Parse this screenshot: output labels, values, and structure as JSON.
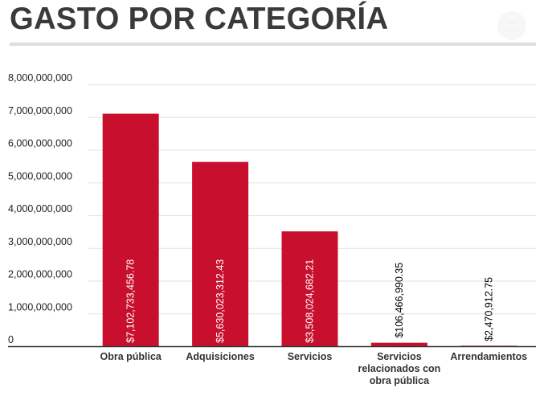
{
  "header": {
    "title": "GASTO POR CATEGORÍA",
    "menu_icon": "hamburger-menu-icon"
  },
  "colors": {
    "bar": "#c8102e",
    "label_inside": "#ffffff",
    "label_outside": "#000000",
    "grid": "#e2e2e2",
    "axis": "#333333"
  },
  "chart_data": {
    "type": "bar",
    "title": "GASTO POR CATEGORÍA",
    "xlabel": "",
    "ylabel": "",
    "ylim": [
      0,
      8000000000
    ],
    "grid": true,
    "legend": "none",
    "y_ticks": [
      0,
      1000000000,
      2000000000,
      3000000000,
      4000000000,
      5000000000,
      6000000000,
      7000000000,
      8000000000
    ],
    "y_tick_labels": [
      "0",
      "1,000,000,000",
      "2,000,000,000",
      "3,000,000,000",
      "4,000,000,000",
      "5,000,000,000",
      "6,000,000,000",
      "7,000,000,000",
      "8,000,000,000"
    ],
    "categories": [
      "Obra pública",
      "Adquisiciones",
      "Servicios",
      "Servicios relacionados con obra pública",
      "Arrendamientos"
    ],
    "category_label_lines": [
      [
        "Obra pública"
      ],
      [
        "Adquisiciones"
      ],
      [
        "Servicios"
      ],
      [
        "Servicios",
        "relacionados con",
        "obra pública"
      ],
      [
        "Arrendamientos"
      ]
    ],
    "values": [
      7102733456.78,
      5630023312.43,
      3508024682.21,
      106466990.35,
      2470912.75
    ],
    "data_labels": [
      "$7,102,733,456.78",
      "$5,630,023,312.43",
      "$3,508,024,682.21",
      "$106,466,990.35",
      "$2,470,912.75"
    ]
  }
}
